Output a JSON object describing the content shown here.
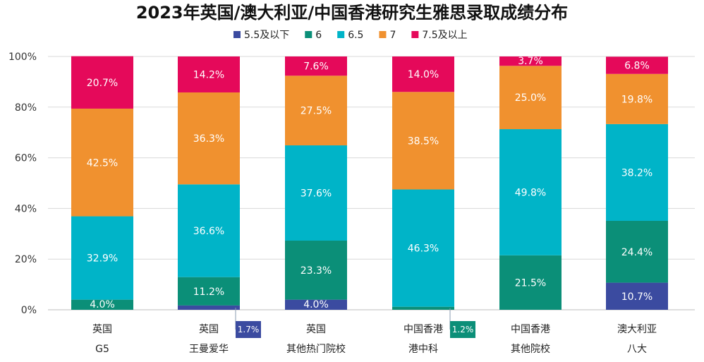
{
  "chart_data": {
    "type": "bar",
    "stacked": true,
    "title": "2023年英国/澳大利亚/中国香港研究生雅思录取成绩分布",
    "ylim": [
      0,
      100
    ],
    "yticks": [
      "0%",
      "20%",
      "40%",
      "60%",
      "80%",
      "100%"
    ],
    "grid": true,
    "legend_position": "top-center",
    "categories": [
      [
        "英国",
        "G5"
      ],
      [
        "英国",
        "王曼爱华"
      ],
      [
        "英国",
        "其他热门院校"
      ],
      [
        "中国香港",
        "港中科"
      ],
      [
        "中国香港",
        "其他院校"
      ],
      [
        "澳大利亚",
        "八大"
      ]
    ],
    "series": [
      {
        "name": "5.5及以下",
        "color": "#3b4ba0",
        "values": [
          0,
          1.7,
          4.0,
          0,
          0,
          10.7
        ],
        "labels": [
          "",
          "",
          "4.0%",
          "",
          "",
          "10.7%"
        ]
      },
      {
        "name": "6",
        "color": "#0b8f78",
        "values": [
          4.0,
          11.2,
          23.3,
          1.2,
          21.5,
          24.4
        ],
        "labels": [
          "4.0%",
          "11.2%",
          "23.3%",
          "",
          "21.5%",
          "24.4%"
        ]
      },
      {
        "name": "6.5",
        "color": "#00b4c8",
        "values": [
          32.9,
          36.6,
          37.6,
          46.3,
          49.8,
          38.2
        ],
        "labels": [
          "32.9%",
          "36.6%",
          "37.6%",
          "46.3%",
          "49.8%",
          "38.2%"
        ]
      },
      {
        "name": "7",
        "color": "#f0912f",
        "values": [
          42.5,
          36.3,
          27.5,
          38.5,
          25.0,
          19.8
        ],
        "labels": [
          "42.5%",
          "36.3%",
          "27.5%",
          "38.5%",
          "25.0%",
          "19.8%"
        ]
      },
      {
        "name": "7.5及以上",
        "color": "#e5095a",
        "values": [
          20.7,
          14.2,
          7.6,
          14.0,
          3.7,
          6.8
        ],
        "labels": [
          "20.7%",
          "14.2%",
          "7.6%",
          "14.0%",
          "3.7%",
          "6.8%"
        ]
      }
    ],
    "callouts": [
      {
        "category_index": 1,
        "series_index": 0,
        "label": "1.7%"
      },
      {
        "category_index": 3,
        "series_index": 1,
        "label": "1.2%"
      }
    ]
  }
}
